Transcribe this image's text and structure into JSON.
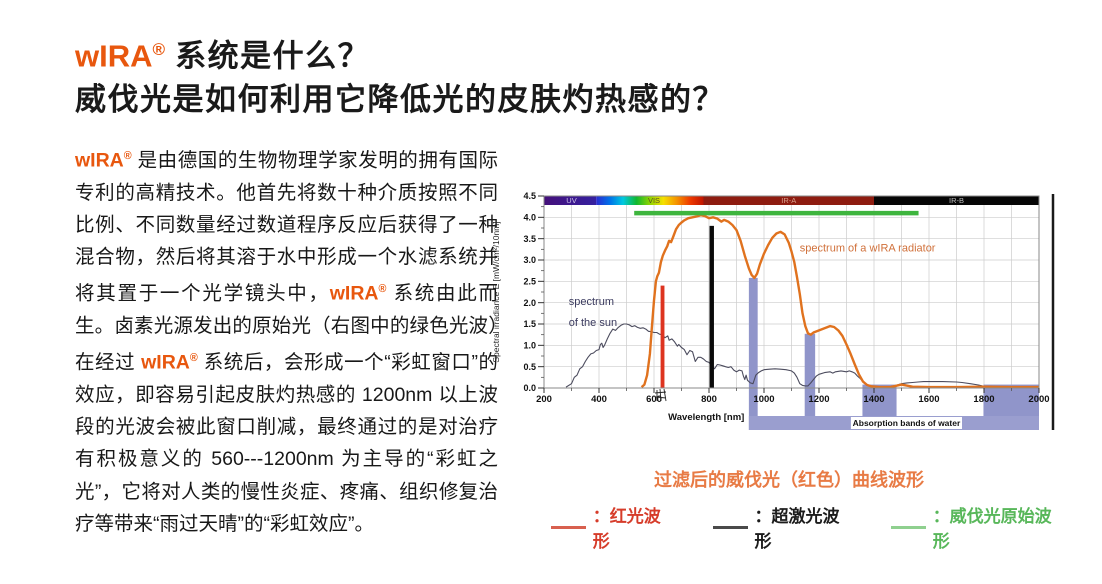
{
  "title": {
    "brand": "wIRA",
    "registered": "®",
    "line1_suffix": " 系统是什么？",
    "line2": "威伐光是如何利用它降低光的皮肤灼热感的？",
    "brand_color": "#e8570e"
  },
  "paragraph": {
    "segments": [
      {
        "t": "wIRA",
        "c": "brand"
      },
      {
        "t": "®",
        "c": "brand sup"
      },
      {
        "t": " 是由德国的生物物理学家发明的拥有国际专利的高精技术。他首先将数十种介质按照不同比例、不同数量经过数道程序反应后获得了一种混合物，然后将其溶于水中形成一个水滤系统并将其置于一个光学镜头中，",
        "c": ""
      },
      {
        "t": "wIRA",
        "c": "brand"
      },
      {
        "t": "®",
        "c": "brand sup"
      },
      {
        "t": " 系统由此而生。卤素光源发出的原始光（右图中的绿色光波）在经过 ",
        "c": ""
      },
      {
        "t": "wIRA",
        "c": "brand"
      },
      {
        "t": "®",
        "c": "brand sup"
      },
      {
        "t": " 系统后，会形成一个“彩虹窗口”的效应，即容易引起皮肤灼热感的 1200nm 以上波段的光波会被此窗口削减，最终通过的是对治疗有积极意义的 560---1200nm 为主导的“彩虹之光”，它将对人类的慢性炎症、疼痛、组织修复治疗等带来“雨过天晴”的“彩虹效应”。",
        "c": ""
      }
    ]
  },
  "chart_data": {
    "type": "line",
    "xlabel": "Wavelength [nm]",
    "ylabel": "Spectral irradiance E [mW/cm²/10nm]",
    "xlim": [
      200,
      2000
    ],
    "ylim": [
      0,
      4.5
    ],
    "x_ticks": [
      200,
      400,
      600,
      800,
      1000,
      1200,
      1400,
      1600,
      1800,
      2000
    ],
    "y_ticks": [
      "0.0",
      "0.5",
      "1.0",
      "1.5",
      "2.0",
      "2.5",
      "3.0",
      "3.5",
      "4.0",
      "4.5"
    ],
    "grid": true,
    "grid_x_step": 100,
    "grid_y_step": 0.5,
    "spectrum_band": {
      "segments": [
        {
          "label": "UV",
          "from": 200,
          "to": 390,
          "fill": [
            "#45107a",
            "#3520a0"
          ],
          "label_color": "#cfc3e8",
          "label_x": 300
        },
        {
          "label": "VIS",
          "from": 390,
          "to": 780,
          "fill": [
            "#2a2bd0",
            "#0070e8",
            "#00c8e0",
            "#10b830",
            "#90d400",
            "#f5e000",
            "#f59300",
            "#ee3a00",
            "#c01400"
          ],
          "label_color": "#5a5220",
          "label_x": 600
        },
        {
          "label": "IR-A",
          "from": 780,
          "to": 1400,
          "fill": [
            "#8e1c10"
          ],
          "label_color": "#d8a08e",
          "label_x": 1090
        },
        {
          "label": "IR-B",
          "from": 1400,
          "to": 2000,
          "fill": [
            "#060606"
          ],
          "label_color": "#bfbfbf",
          "label_x": 1700
        }
      ]
    },
    "series": [
      {
        "name": "spectrum of the sun",
        "color": "#4c4c5e",
        "width": 1.1,
        "points": [
          [
            280,
            0.02
          ],
          [
            300,
            0.1
          ],
          [
            310,
            0.25
          ],
          [
            320,
            0.3
          ],
          [
            330,
            0.45
          ],
          [
            340,
            0.5
          ],
          [
            350,
            0.62
          ],
          [
            360,
            0.72
          ],
          [
            370,
            0.8
          ],
          [
            380,
            0.82
          ],
          [
            390,
            0.88
          ],
          [
            400,
            0.9
          ],
          [
            405,
            1.02
          ],
          [
            410,
            1.05
          ],
          [
            415,
            0.95
          ],
          [
            420,
            1.0
          ],
          [
            430,
            1.15
          ],
          [
            440,
            1.28
          ],
          [
            450,
            1.38
          ],
          [
            460,
            1.35
          ],
          [
            470,
            1.42
          ],
          [
            480,
            1.47
          ],
          [
            490,
            1.5
          ],
          [
            500,
            1.5
          ],
          [
            510,
            1.48
          ],
          [
            520,
            1.44
          ],
          [
            530,
            1.46
          ],
          [
            540,
            1.42
          ],
          [
            550,
            1.4
          ],
          [
            560,
            1.41
          ],
          [
            570,
            1.38
          ],
          [
            580,
            1.33
          ],
          [
            590,
            1.32
          ],
          [
            600,
            1.3
          ],
          [
            610,
            1.3
          ],
          [
            620,
            1.26
          ],
          [
            630,
            1.25
          ],
          [
            640,
            1.18
          ],
          [
            650,
            1.22
          ],
          [
            655,
            1.12
          ],
          [
            665,
            1.15
          ],
          [
            675,
            1.08
          ],
          [
            685,
            0.98
          ],
          [
            690,
            1.02
          ],
          [
            700,
            0.95
          ],
          [
            710,
            0.9
          ],
          [
            720,
            0.78
          ],
          [
            730,
            0.88
          ],
          [
            740,
            0.85
          ],
          [
            750,
            0.62
          ],
          [
            760,
            0.72
          ],
          [
            770,
            0.72
          ],
          [
            780,
            0.68
          ],
          [
            790,
            0.62
          ],
          [
            800,
            0.6
          ],
          [
            810,
            0.52
          ],
          [
            820,
            0.45
          ],
          [
            830,
            0.55
          ],
          [
            840,
            0.54
          ],
          [
            850,
            0.52
          ],
          [
            860,
            0.5
          ],
          [
            870,
            0.48
          ],
          [
            880,
            0.5
          ],
          [
            890,
            0.42
          ],
          [
            900,
            0.38
          ],
          [
            910,
            0.42
          ],
          [
            920,
            0.4
          ],
          [
            925,
            0.28
          ],
          [
            930,
            0.2
          ],
          [
            935,
            0.3
          ],
          [
            940,
            0.18
          ],
          [
            950,
            0.12
          ],
          [
            960,
            0.1
          ],
          [
            970,
            0.3
          ],
          [
            980,
            0.36
          ],
          [
            990,
            0.4
          ],
          [
            1000,
            0.43
          ],
          [
            1020,
            0.44
          ],
          [
            1040,
            0.45
          ],
          [
            1060,
            0.44
          ],
          [
            1080,
            0.43
          ],
          [
            1100,
            0.4
          ],
          [
            1110,
            0.35
          ],
          [
            1120,
            0.25
          ],
          [
            1130,
            0.1
          ],
          [
            1140,
            0.06
          ],
          [
            1150,
            0.05
          ],
          [
            1160,
            0.05
          ],
          [
            1170,
            0.12
          ],
          [
            1180,
            0.2
          ],
          [
            1190,
            0.28
          ],
          [
            1200,
            0.32
          ],
          [
            1220,
            0.36
          ],
          [
            1240,
            0.38
          ],
          [
            1250,
            0.35
          ],
          [
            1260,
            0.38
          ],
          [
            1280,
            0.4
          ],
          [
            1300,
            0.38
          ],
          [
            1310,
            0.4
          ],
          [
            1320,
            0.38
          ],
          [
            1330,
            0.35
          ],
          [
            1340,
            0.28
          ],
          [
            1350,
            0.22
          ],
          [
            1360,
            0.15
          ],
          [
            1370,
            0.1
          ],
          [
            1380,
            0.06
          ],
          [
            1400,
            0.03
          ],
          [
            1420,
            0.02
          ],
          [
            1440,
            0.02
          ],
          [
            1460,
            0.03
          ],
          [
            1480,
            0.06
          ],
          [
            1500,
            0.1
          ],
          [
            1520,
            0.12
          ],
          [
            1540,
            0.13
          ],
          [
            1560,
            0.14
          ],
          [
            1580,
            0.15
          ],
          [
            1600,
            0.15
          ],
          [
            1650,
            0.15
          ],
          [
            1700,
            0.14
          ],
          [
            1720,
            0.13
          ],
          [
            1750,
            0.1
          ],
          [
            1780,
            0.07
          ],
          [
            1800,
            0.04
          ],
          [
            1850,
            0.03
          ],
          [
            1900,
            0.03
          ],
          [
            1950,
            0.03
          ],
          [
            2000,
            0.03
          ]
        ]
      },
      {
        "name": "spectrum of a wIRA radiator",
        "color": "#e0721e",
        "width": 2.4,
        "points": [
          [
            555,
            0.02
          ],
          [
            565,
            0.08
          ],
          [
            575,
            0.3
          ],
          [
            585,
            0.8
          ],
          [
            592,
            1.4
          ],
          [
            600,
            2.05
          ],
          [
            607,
            2.5
          ],
          [
            612,
            2.62
          ],
          [
            618,
            2.7
          ],
          [
            625,
            2.95
          ],
          [
            632,
            3.1
          ],
          [
            640,
            3.22
          ],
          [
            648,
            3.32
          ],
          [
            655,
            3.45
          ],
          [
            662,
            3.42
          ],
          [
            670,
            3.55
          ],
          [
            680,
            3.72
          ],
          [
            690,
            3.82
          ],
          [
            700,
            3.88
          ],
          [
            710,
            3.93
          ],
          [
            725,
            3.98
          ],
          [
            740,
            4.0
          ],
          [
            755,
            4.02
          ],
          [
            770,
            4.05
          ],
          [
            785,
            4.03
          ],
          [
            800,
            3.98
          ],
          [
            815,
            4.0
          ],
          [
            830,
            3.97
          ],
          [
            845,
            3.9
          ],
          [
            855,
            3.94
          ],
          [
            870,
            3.9
          ],
          [
            885,
            3.82
          ],
          [
            900,
            3.7
          ],
          [
            915,
            3.45
          ],
          [
            930,
            3.1
          ],
          [
            945,
            2.8
          ],
          [
            955,
            2.65
          ],
          [
            965,
            2.58
          ],
          [
            975,
            2.68
          ],
          [
            985,
            2.9
          ],
          [
            1000,
            3.15
          ],
          [
            1015,
            3.35
          ],
          [
            1030,
            3.52
          ],
          [
            1045,
            3.62
          ],
          [
            1060,
            3.66
          ],
          [
            1075,
            3.6
          ],
          [
            1090,
            3.4
          ],
          [
            1100,
            3.2
          ],
          [
            1110,
            2.95
          ],
          [
            1120,
            2.6
          ],
          [
            1130,
            2.2
          ],
          [
            1140,
            1.75
          ],
          [
            1150,
            1.45
          ],
          [
            1160,
            1.28
          ],
          [
            1170,
            1.25
          ],
          [
            1180,
            1.3
          ],
          [
            1200,
            1.35
          ],
          [
            1220,
            1.4
          ],
          [
            1240,
            1.45
          ],
          [
            1255,
            1.43
          ],
          [
            1270,
            1.35
          ],
          [
            1285,
            1.22
          ],
          [
            1300,
            1.02
          ],
          [
            1315,
            0.8
          ],
          [
            1330,
            0.55
          ],
          [
            1345,
            0.32
          ],
          [
            1360,
            0.15
          ],
          [
            1375,
            0.07
          ],
          [
            1390,
            0.04
          ],
          [
            1420,
            0.02
          ],
          [
            1460,
            0.02
          ],
          [
            1500,
            0.08
          ],
          [
            1540,
            0.03
          ],
          [
            1600,
            0.02
          ],
          [
            1700,
            0.02
          ],
          [
            1800,
            0.03
          ],
          [
            1900,
            0.02
          ],
          [
            2000,
            0.02
          ]
        ]
      }
    ],
    "green_line": {
      "name": "威伐光原始波形",
      "y": 4.1,
      "from": 528,
      "to": 1562,
      "color": "#3eb53e",
      "width": 4.5
    },
    "bars": [
      {
        "name": "红光波形",
        "from": 624,
        "to": 638,
        "height": 2.4,
        "color": "#dd3420"
      },
      {
        "name": "超激光波形",
        "from": 802,
        "to": 818,
        "height": 3.8,
        "color": "#0a0a0a"
      }
    ],
    "water_bands": [
      {
        "from": 945,
        "to": 977,
        "height": 2.58
      },
      {
        "from": 1148,
        "to": 1186,
        "height": 1.27
      },
      {
        "from": 1358,
        "to": 1482,
        "height": 0.08
      },
      {
        "from": 1798,
        "to": 2000,
        "height": 0.08
      }
    ],
    "water_band_color": "#9095ca",
    "water_banner": {
      "label": "Absorption bands of water",
      "from": 945,
      "to": 2000,
      "color": "#9a9ecf",
      "label_box_from": 1316,
      "label_box_to": 1720
    },
    "annotations": [
      {
        "text": "spectrum of a wIRA radiator",
        "x": 1130,
        "y": 3.2,
        "color": "#d0703a",
        "anchor": "start",
        "size": 11
      },
      {
        "text": "spectrum",
        "x": 290,
        "y": 1.95,
        "color": "#3a3a5e",
        "anchor": "start",
        "size": 11
      },
      {
        "text": "of the sun",
        "x": 290,
        "y": 1.45,
        "color": "#3a3a5e",
        "anchor": "start",
        "size": 11
      }
    ]
  },
  "legend": {
    "caption": "过滤后的威伐光（红色）曲线波形",
    "caption_color": "#e87b45",
    "items": [
      {
        "label": "：红光波形",
        "color": "#d63c2a",
        "swatch": "#d8604f"
      },
      {
        "label": "：超激光波形",
        "color": "#1c1c1c",
        "swatch": "#4a4a4a"
      },
      {
        "label": "：威伐光原始波形",
        "color": "#58b75a",
        "swatch": "#8fd08f"
      }
    ]
  }
}
